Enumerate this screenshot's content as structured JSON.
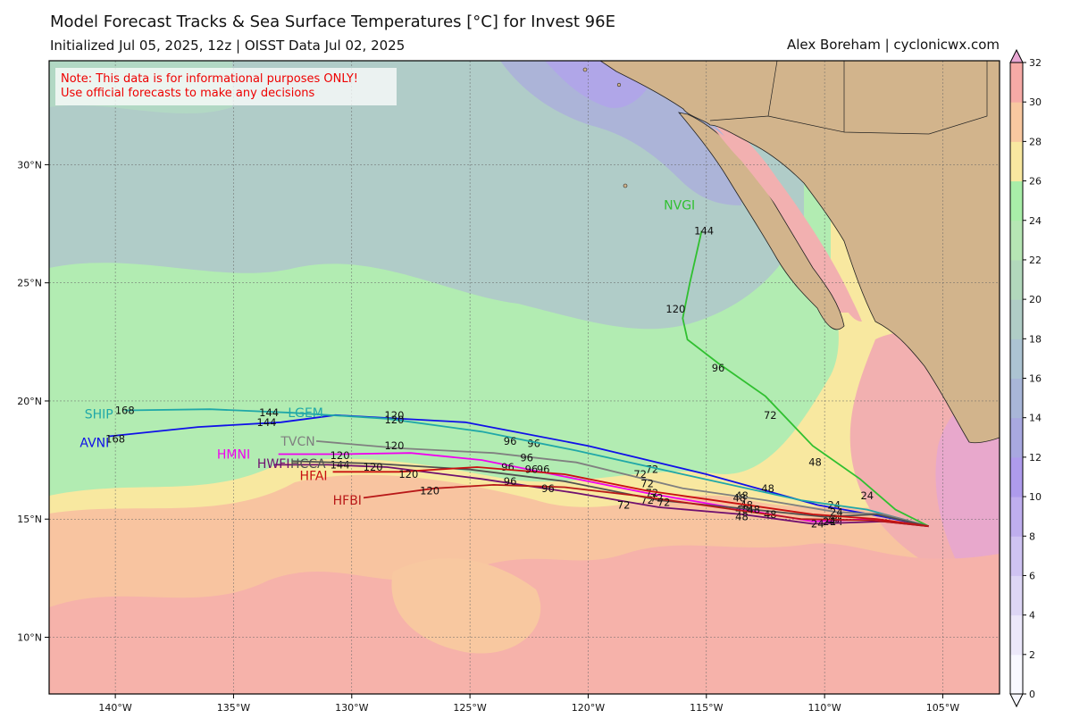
{
  "header": {
    "title": "Model Forecast Tracks & Sea Surface Temperatures [°C] for Invest 96E",
    "subtitle": "Initialized Jul 05, 2025, 12z | OISST Data Jul 02, 2025",
    "credit": "Alex Boreham | cyclonicwx.com"
  },
  "note": {
    "line1": "Note: This data is for informational purposes ONLY!",
    "line2": "Use official forecasts to make any decisions",
    "color": "#ee0000"
  },
  "map": {
    "lon_range": [
      -142.8,
      -102.6
    ],
    "lat_range": [
      7.6,
      34.4
    ],
    "lon_ticks": [
      "140°W",
      "135°W",
      "130°W",
      "125°W",
      "120°W",
      "115°W",
      "110°W",
      "105°W"
    ],
    "lat_ticks": [
      "10°N",
      "15°N",
      "20°N",
      "25°N",
      "30°N"
    ],
    "land_color": "#d2b48c"
  },
  "colorbar": {
    "ticks": [
      "0",
      "2",
      "4",
      "6",
      "8",
      "10",
      "12",
      "14",
      "16",
      "18",
      "20",
      "22",
      "24",
      "26",
      "28",
      "30",
      "32"
    ],
    "colors": [
      "#f8f8ff",
      "#ece8fa",
      "#ddd6f5",
      "#cfc3f2",
      "#bfaeee",
      "#ae9bec",
      "#a8a8e0",
      "#a8b6d8",
      "#acc3d2",
      "#b0cdc6",
      "#b2d8bc",
      "#b6e6b4",
      "#a8eea8",
      "#f8e8a0",
      "#f8c8a0",
      "#f6aaa6",
      "#e8a6d2"
    ]
  },
  "chart_data": {
    "type": "map",
    "tracks": [
      {
        "name": "AVNI",
        "color": "#1010e8",
        "points": [
          [
            -140.3,
            18.5
          ],
          [
            -136.5,
            18.9
          ],
          [
            -133,
            19.1
          ],
          [
            -130.7,
            19.4
          ],
          [
            -125.2,
            19.1
          ],
          [
            -120,
            18.1
          ],
          [
            -115,
            16.9
          ],
          [
            -110.3,
            15.6
          ],
          [
            -107.5,
            15.1
          ],
          [
            -105.6,
            14.7
          ]
        ],
        "hour_labels": [
          {
            "t": "168",
            "lon": -140,
            "lat": 18.4
          },
          {
            "t": "144",
            "lon": -133.6,
            "lat": 19.1
          },
          {
            "t": "120",
            "lon": -128.2,
            "lat": 19.4
          },
          {
            "t": "96",
            "lon": -122.3,
            "lat": 18.2
          },
          {
            "t": "72",
            "lon": -117.3,
            "lat": 17.1
          },
          {
            "t": "48",
            "lon": -112.4,
            "lat": 16.3
          },
          {
            "t": "24",
            "lon": -109.6,
            "lat": 15.6
          }
        ]
      },
      {
        "name": "SHIP",
        "color": "#20a8a8",
        "points": [
          [
            -139.6,
            19.6
          ],
          [
            -136,
            19.65
          ],
          [
            -132.5,
            19.5
          ],
          [
            -128.5,
            19.25
          ],
          [
            -124.5,
            18.7
          ],
          [
            -120.5,
            17.9
          ],
          [
            -116,
            16.9
          ],
          [
            -111,
            15.8
          ],
          [
            -108.2,
            15.4
          ],
          [
            -105.6,
            14.7
          ]
        ],
        "hour_labels": [
          {
            "t": "168",
            "lon": -139.6,
            "lat": 19.6
          },
          {
            "t": "144",
            "lon": -133.5,
            "lat": 19.5
          },
          {
            "t": "120",
            "lon": -128.2,
            "lat": 19.2
          },
          {
            "t": "96",
            "lon": -123.3,
            "lat": 18.3
          },
          {
            "t": "72",
            "lon": -117.8,
            "lat": 16.9
          },
          {
            "t": "48",
            "lon": -113.5,
            "lat": 16
          }
        ]
      },
      {
        "name": "LGEM",
        "color": "#20a8a8",
        "points": [],
        "hour_labels": []
      },
      {
        "name": "NVGI",
        "color": "#30c030",
        "points": [
          [
            -115.2,
            27.2
          ],
          [
            -115.7,
            25
          ],
          [
            -116,
            23.5
          ],
          [
            -115.8,
            22.6
          ],
          [
            -114.5,
            21.6
          ],
          [
            -112.5,
            20.2
          ],
          [
            -110.5,
            18.1
          ],
          [
            -108.5,
            16.7
          ],
          [
            -107,
            15.4
          ],
          [
            -105.6,
            14.7
          ]
        ],
        "hour_labels": [
          {
            "t": "144",
            "lon": -115.1,
            "lat": 27.2
          },
          {
            "t": "120",
            "lon": -116.3,
            "lat": 23.9
          },
          {
            "t": "96",
            "lon": -114.5,
            "lat": 21.4
          },
          {
            "t": "72",
            "lon": -112.3,
            "lat": 19.4
          },
          {
            "t": "48",
            "lon": -110.4,
            "lat": 17.4
          },
          {
            "t": "24",
            "lon": -108.2,
            "lat": 16
          }
        ]
      },
      {
        "name": "TVCN",
        "color": "#808080",
        "points": [
          [
            -131.5,
            18.3
          ],
          [
            -128,
            18
          ],
          [
            -124,
            17.8
          ],
          [
            -120.5,
            17.4
          ],
          [
            -116,
            16.3
          ],
          [
            -112.5,
            15.8
          ],
          [
            -109.5,
            15.3
          ],
          [
            -107.5,
            15.2
          ],
          [
            -105.6,
            14.7
          ]
        ],
        "hour_labels": [
          {
            "t": "120",
            "lon": -128.2,
            "lat": 18.1
          },
          {
            "t": "96",
            "lon": -122.6,
            "lat": 17.6
          },
          {
            "t": "72",
            "lon": -117.5,
            "lat": 16.5
          },
          {
            "t": "48",
            "lon": -113.6,
            "lat": 15.9
          },
          {
            "t": "24",
            "lon": -109.6,
            "lat": 15
          }
        ]
      },
      {
        "name": "HMNI",
        "color": "#f000f0",
        "points": [
          [
            -133.1,
            17.75
          ],
          [
            -130.5,
            17.75
          ],
          [
            -127.5,
            17.8
          ],
          [
            -124.5,
            17.5
          ],
          [
            -121,
            16.8
          ],
          [
            -117.5,
            16.1
          ],
          [
            -114,
            15.5
          ],
          [
            -110.5,
            14.9
          ],
          [
            -108,
            15
          ],
          [
            -105.6,
            14.7
          ]
        ],
        "hour_labels": [
          {
            "t": "120",
            "lon": -130.5,
            "lat": 17.7
          },
          {
            "t": "96",
            "lon": -123.4,
            "lat": 17.2
          },
          {
            "t": "72",
            "lon": -117.5,
            "lat": 15.8
          },
          {
            "t": "48",
            "lon": -113.5,
            "lat": 15.4
          },
          {
            "t": "24",
            "lon": -109.5,
            "lat": 14.9
          }
        ]
      },
      {
        "name": "HWFI",
        "color": "#701070",
        "points": [
          [
            -133.3,
            17.3
          ],
          [
            -131,
            17.3
          ],
          [
            -128.5,
            17.2
          ],
          [
            -124.5,
            16.7
          ],
          [
            -120.5,
            16.1
          ],
          [
            -117,
            15.5
          ],
          [
            -113.5,
            15.2
          ],
          [
            -110.5,
            14.8
          ],
          [
            -107.5,
            14.9
          ],
          [
            -105.6,
            14.7
          ]
        ],
        "hour_labels": [
          {
            "t": "144",
            "lon": -130.5,
            "lat": 17.3
          },
          {
            "t": "96",
            "lon": -123.3,
            "lat": 16.6
          },
          {
            "t": "72",
            "lon": -118.5,
            "lat": 15.6
          },
          {
            "t": "48",
            "lon": -113.5,
            "lat": 15.1
          },
          {
            "t": "24",
            "lon": -110.3,
            "lat": 14.8
          }
        ]
      },
      {
        "name": "HCCA",
        "color": "#505050",
        "points": [
          [
            -132.5,
            17.45
          ],
          [
            -129,
            17.35
          ],
          [
            -125,
            17.1
          ],
          [
            -121,
            16.6
          ],
          [
            -117,
            15.8
          ],
          [
            -113,
            15.4
          ],
          [
            -110,
            15.1
          ],
          [
            -107.8,
            15.2
          ],
          [
            -105.6,
            14.7
          ]
        ],
        "hour_labels": [
          {
            "t": "120",
            "lon": -129.1,
            "lat": 17.2
          },
          {
            "t": "96",
            "lon": -121.9,
            "lat": 17.1
          },
          {
            "t": "72",
            "lon": -117.3,
            "lat": 16.1
          },
          {
            "t": "48",
            "lon": -113.3,
            "lat": 15.6
          },
          {
            "t": "24",
            "lon": -109.7,
            "lat": 15
          }
        ]
      },
      {
        "name": "HFAI",
        "color": "#c81010",
        "points": [
          [
            -130.8,
            17
          ],
          [
            -128,
            17
          ],
          [
            -124.7,
            17.2
          ],
          [
            -121,
            16.9
          ],
          [
            -117.5,
            16.2
          ],
          [
            -114,
            15.7
          ],
          [
            -110.5,
            15.2
          ],
          [
            -107.8,
            15
          ],
          [
            -105.6,
            14.7
          ]
        ],
        "hour_labels": [
          {
            "t": "120",
            "lon": -127.6,
            "lat": 16.9
          },
          {
            "t": "96",
            "lon": -122.4,
            "lat": 17.1
          },
          {
            "t": "72",
            "lon": -117.1,
            "lat": 15.9
          },
          {
            "t": "48",
            "lon": -112.3,
            "lat": 15.2
          },
          {
            "t": "24",
            "lon": -109.5,
            "lat": 15.3
          }
        ]
      },
      {
        "name": "HFBI",
        "color": "#b81818",
        "points": [
          [
            -129.5,
            15.9
          ],
          [
            -126.5,
            16.3
          ],
          [
            -124,
            16.45
          ],
          [
            -121,
            16.35
          ],
          [
            -118,
            16
          ],
          [
            -114.5,
            15.5
          ],
          [
            -111,
            15
          ],
          [
            -108,
            14.95
          ],
          [
            -105.6,
            14.7
          ]
        ],
        "hour_labels": [
          {
            "t": "120",
            "lon": -126.7,
            "lat": 16.2
          },
          {
            "t": "96",
            "lon": -121.7,
            "lat": 16.3
          },
          {
            "t": "72",
            "lon": -116.8,
            "lat": 15.7
          },
          {
            "t": "48",
            "lon": -113,
            "lat": 15.4
          },
          {
            "t": "24",
            "lon": -109.8,
            "lat": 14.9
          }
        ]
      }
    ],
    "model_labels": [
      {
        "name": "SHIP",
        "lon": -141.3,
        "lat": 19.45,
        "color": "#20a8a8"
      },
      {
        "name": "LGEM",
        "lon": -132.7,
        "lat": 19.5,
        "color": "#20a8a8"
      },
      {
        "name": "AVNI",
        "lon": -141.5,
        "lat": 18.25,
        "color": "#1010e8"
      },
      {
        "name": "TVCN",
        "lon": -133,
        "lat": 18.3,
        "color": "#808080"
      },
      {
        "name": "HMNI",
        "lon": -135.7,
        "lat": 17.75,
        "color": "#f000f0"
      },
      {
        "name": "HWFI",
        "lon": -134,
        "lat": 17.35,
        "color": "#701070"
      },
      {
        "name": "HCCA",
        "lon": -132.6,
        "lat": 17.35,
        "color": "#505050"
      },
      {
        "name": "HFAI",
        "lon": -132.2,
        "lat": 16.85,
        "color": "#c81010"
      },
      {
        "name": "HFBI",
        "lon": -130.8,
        "lat": 15.8,
        "color": "#b81818"
      },
      {
        "name": "NVGI",
        "lon": -116.8,
        "lat": 28.3,
        "color": "#30c030"
      }
    ]
  }
}
